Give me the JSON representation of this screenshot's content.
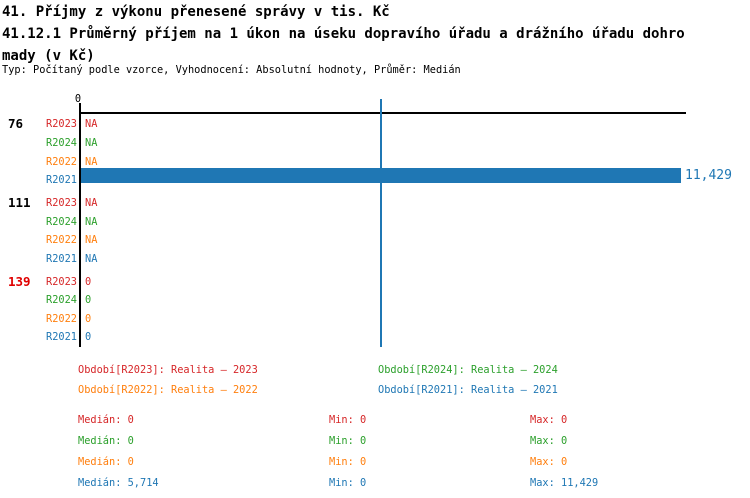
{
  "header": {
    "title": "41. Příjmy z výkonu přenesené správy v tis. Kč",
    "subtitle_line1": "41.12.1 Průměrný příjem na 1 úkon na úseku dopravího úřadu a drážního úřadu dohro",
    "subtitle_line2": "mady (v Kč)",
    "meta": "Typ: Počítaný podle vzorce, Vyhodnocení: Absolutní hodnoty, Průměr: Medián"
  },
  "colors": {
    "R2023": "#d62728",
    "R2024": "#2ca02c",
    "R2022": "#ff7f0e",
    "R2021": "#1f77b4",
    "axis": "#000000",
    "alert_red": "#e00000"
  },
  "chart_data": {
    "type": "bar",
    "orientation": "horizontal",
    "title": "41.12.1 Průměrný příjem na 1 úkon na úseku dopravího úřadu a drážního úřadu dohromady (v Kč)",
    "x_axis": {
      "position": "top",
      "tick_labels": [
        "0"
      ]
    },
    "xlim": [
      0,
      11429
    ],
    "median_line_value": 5714,
    "median_line_color": "#1f77b4",
    "grid": false,
    "groups": [
      {
        "label": "76",
        "label_color": "#000000",
        "rows": [
          {
            "series": "R2023",
            "value": null,
            "display": "NA"
          },
          {
            "series": "R2024",
            "value": null,
            "display": "NA"
          },
          {
            "series": "R2022",
            "value": null,
            "display": "NA"
          },
          {
            "series": "R2021",
            "value": 11429,
            "display": "11,429"
          }
        ]
      },
      {
        "label": "111",
        "label_color": "#000000",
        "rows": [
          {
            "series": "R2023",
            "value": null,
            "display": "NA"
          },
          {
            "series": "R2024",
            "value": null,
            "display": "NA"
          },
          {
            "series": "R2022",
            "value": null,
            "display": "NA"
          },
          {
            "series": "R2021",
            "value": null,
            "display": "NA"
          }
        ]
      },
      {
        "label": "139",
        "label_color": "#e00000",
        "rows": [
          {
            "series": "R2023",
            "value": 0,
            "display": "0"
          },
          {
            "series": "R2024",
            "value": 0,
            "display": "0"
          },
          {
            "series": "R2022",
            "value": 0,
            "display": "0"
          },
          {
            "series": "R2021",
            "value": 0,
            "display": "0"
          }
        ]
      }
    ]
  },
  "legend": {
    "items": [
      {
        "text": "Období[R2023]: Realita – 2023",
        "color": "#d62728"
      },
      {
        "text": "Období[R2024]: Realita – 2024",
        "color": "#2ca02c"
      },
      {
        "text": "Období[R2022]: Realita – 2022",
        "color": "#ff7f0e"
      },
      {
        "text": "Období[R2021]: Realita – 2021",
        "color": "#1f77b4"
      }
    ]
  },
  "stats": {
    "rows": [
      {
        "median": "Medián: 0",
        "min": "Min: 0",
        "max": "Max: 0",
        "color": "#d62728"
      },
      {
        "median": "Medián: 0",
        "min": "Min: 0",
        "max": "Max: 0",
        "color": "#2ca02c"
      },
      {
        "median": "Medián: 0",
        "min": "Min: 0",
        "max": "Max: 0",
        "color": "#ff7f0e"
      },
      {
        "median": "Medián: 5,714",
        "min": "Min: 0",
        "max": "Max: 11,429",
        "color": "#1f77b4"
      }
    ]
  }
}
